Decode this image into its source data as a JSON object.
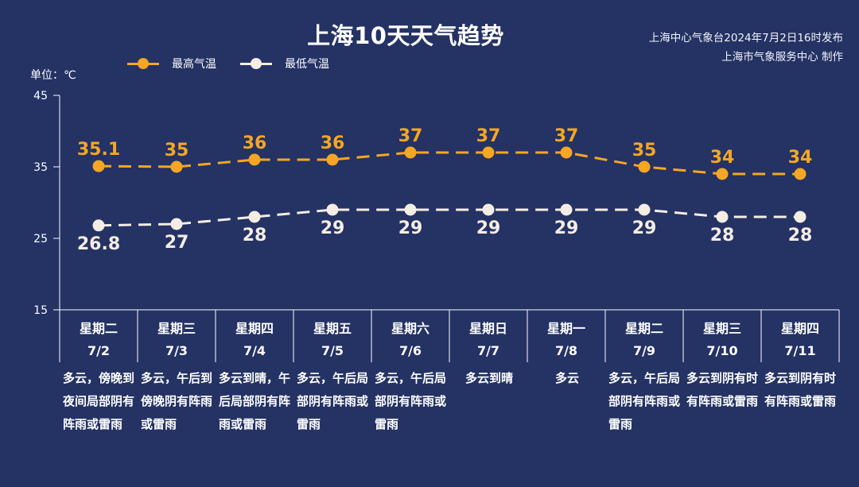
{
  "header": {
    "title": "上海10天天气趋势",
    "issuer_line1": "上海中心气象台2024年7月2日16时发布",
    "issuer_line2": "上海市气象服务中心 制作"
  },
  "legend": {
    "high_label": "最高气温",
    "low_label": "最低气温"
  },
  "unit_label": "单位：℃",
  "colors": {
    "background": "#243264",
    "high": "#f5a623",
    "low": "#f4ede4",
    "axis": "#ffffff"
  },
  "days": [
    {
      "weekday": "星期二",
      "date": "7/2",
      "desc": "多云，傍晚到夜间局部阴有阵雨或雷雨"
    },
    {
      "weekday": "星期三",
      "date": "7/3",
      "desc": "多云，午后到傍晚阴有阵雨或雷雨"
    },
    {
      "weekday": "星期四",
      "date": "7/4",
      "desc": "多云到晴，午后局部阴有阵雨或雷雨"
    },
    {
      "weekday": "星期五",
      "date": "7/5",
      "desc": "多云，午后局部阴有阵雨或雷雨"
    },
    {
      "weekday": "星期六",
      "date": "7/6",
      "desc": "多云，午后局部阴有阵雨或雷雨"
    },
    {
      "weekday": "星期日",
      "date": "7/7",
      "desc": "多云到晴"
    },
    {
      "weekday": "星期一",
      "date": "7/8",
      "desc": "多云"
    },
    {
      "weekday": "星期二",
      "date": "7/9",
      "desc": "多云，午后局部阴有阵雨或雷雨"
    },
    {
      "weekday": "星期三",
      "date": "7/10",
      "desc": "多云到阴有时有阵雨或雷雨"
    },
    {
      "weekday": "星期四",
      "date": "7/11",
      "desc": "多云到阴有时有阵雨或雷雨"
    }
  ],
  "chart_data": {
    "type": "line",
    "title": "上海10天天气趋势",
    "categories": [
      "7/2",
      "7/3",
      "7/4",
      "7/5",
      "7/6",
      "7/7",
      "7/8",
      "7/9",
      "7/10",
      "7/11"
    ],
    "series": [
      {
        "name": "最高气温",
        "values": [
          35.1,
          35,
          36,
          36,
          37,
          37,
          37,
          35,
          34,
          34
        ],
        "color": "#f5a623",
        "style": "dashed"
      },
      {
        "name": "最低气温",
        "values": [
          26.8,
          27,
          28,
          29,
          29,
          29,
          29,
          29,
          28,
          28
        ],
        "color": "#f4ede4",
        "style": "dashed"
      }
    ],
    "ylabel": "单位：℃",
    "ylim": [
      15,
      45
    ],
    "yticks": [
      15,
      25,
      35,
      45
    ],
    "grid": false,
    "legend_position": "top"
  }
}
